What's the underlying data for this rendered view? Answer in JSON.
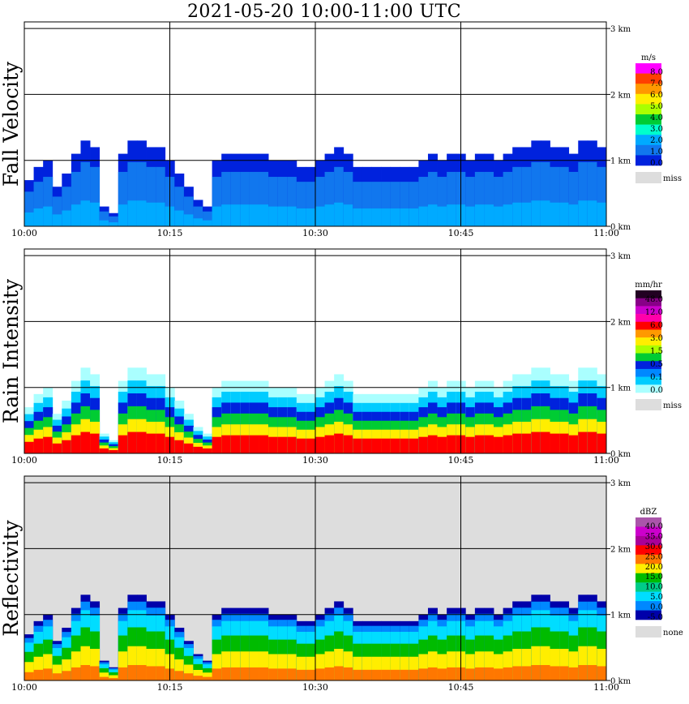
{
  "title": "2021-05-20  10:00-11:00 UTC",
  "colors": {
    "miss": "#dddddd",
    "grid": "#000000"
  },
  "chart_data": [
    {
      "type": "heatmap",
      "ylabel": "Fall Velocity",
      "x_ticks": [
        "10:00",
        "10:15",
        "10:30",
        "10:45",
        "11:00"
      ],
      "y_ticks": [
        "0 km",
        "1 km",
        "2 km",
        "3 km"
      ],
      "ylim_km": [
        0,
        3.1
      ],
      "background": "#ffffff",
      "legend": {
        "unit": "m/s",
        "labels": [
          "8.0",
          "7.0",
          "6.0",
          "5.0",
          "4.0",
          "3.0",
          "2.0",
          "1.0",
          "0.0"
        ],
        "colors": [
          "#ff00ff",
          "#ff4000",
          "#ff9900",
          "#ffee00",
          "#aaff00",
          "#00cc33",
          "#00ffcc",
          "#00aaff",
          "#1177ee",
          "#0022dd"
        ],
        "miss_label": "miss"
      },
      "top_km": [
        0.7,
        0.9,
        1.0,
        0.6,
        0.8,
        1.1,
        1.3,
        1.2,
        0.3,
        0.2,
        1.1,
        1.3,
        1.3,
        1.2,
        1.2,
        1.0,
        0.8,
        0.6,
        0.4,
        0.3,
        1.0,
        1.1,
        1.1,
        1.1,
        1.1,
        1.1,
        1.0,
        1.0,
        1.0,
        0.9,
        0.9,
        1.0,
        1.1,
        1.2,
        1.1,
        0.9,
        0.9,
        0.9,
        0.9,
        0.9,
        0.9,
        0.9,
        1.0,
        1.1,
        1.0,
        1.1,
        1.1,
        1.0,
        1.1,
        1.1,
        1.0,
        1.1,
        1.2,
        1.2,
        1.3,
        1.3,
        1.2,
        1.2,
        1.1,
        1.3,
        1.3,
        1.2
      ],
      "layers": [
        {
          "frac": 1.0,
          "color": "#0022dd"
        },
        {
          "frac": 0.75,
          "color": "#1177ee"
        },
        {
          "frac": 0.3,
          "color": "#00aaff"
        }
      ]
    },
    {
      "type": "heatmap",
      "ylabel": "Rain Intensity",
      "x_ticks": [
        "10:00",
        "10:15",
        "10:30",
        "10:45",
        "11:00"
      ],
      "y_ticks": [
        "0 km",
        "1 km",
        "2 km",
        "3 km"
      ],
      "ylim_km": [
        0,
        3.1
      ],
      "background": "#ffffff",
      "legend": {
        "unit": "mm/hr",
        "labels": [
          "48.0",
          "12.0",
          "6.0",
          "3.0",
          "1.5",
          "0.5",
          "0.1",
          "0.0"
        ],
        "colors": [
          "#220022",
          "#880088",
          "#cc00cc",
          "#ff00aa",
          "#ff0000",
          "#ff9900",
          "#ffee00",
          "#aaff00",
          "#00cc33",
          "#0022dd",
          "#0088ff",
          "#00ccff",
          "#aaffff"
        ],
        "miss_label": "miss"
      },
      "top_km": [
        0.7,
        0.9,
        1.0,
        0.6,
        0.8,
        1.1,
        1.3,
        1.2,
        0.3,
        0.2,
        1.1,
        1.3,
        1.3,
        1.2,
        1.2,
        1.0,
        0.8,
        0.6,
        0.4,
        0.3,
        1.0,
        1.1,
        1.1,
        1.1,
        1.1,
        1.1,
        1.0,
        1.0,
        1.0,
        0.9,
        0.9,
        1.0,
        1.1,
        1.2,
        1.1,
        0.9,
        0.9,
        0.9,
        0.9,
        0.9,
        0.9,
        0.9,
        1.0,
        1.1,
        1.0,
        1.1,
        1.1,
        1.0,
        1.1,
        1.1,
        1.0,
        1.1,
        1.2,
        1.2,
        1.3,
        1.3,
        1.2,
        1.2,
        1.1,
        1.3,
        1.3,
        1.2
      ],
      "layers": [
        {
          "frac": 1.0,
          "color": "#aaffff"
        },
        {
          "frac": 0.85,
          "color": "#00ccff"
        },
        {
          "frac": 0.7,
          "color": "#0022dd"
        },
        {
          "frac": 0.55,
          "color": "#00cc33"
        },
        {
          "frac": 0.4,
          "color": "#ffee00"
        },
        {
          "frac": 0.25,
          "color": "#ff0000"
        }
      ]
    },
    {
      "type": "heatmap",
      "ylabel": "Reflectivity",
      "x_ticks": [
        "10:00",
        "10:15",
        "10:30",
        "10:45",
        "11:00"
      ],
      "y_ticks": [
        "0 km",
        "1 km",
        "2 km",
        "3 km"
      ],
      "ylim_km": [
        0,
        3.1
      ],
      "background": "#dddddd",
      "legend": {
        "unit": "dBZ",
        "labels": [
          "40.0",
          "35.0",
          "30.0",
          "25.0",
          "20.0",
          "15.0",
          "10.0",
          "5.0",
          "0.0",
          "-5.0"
        ],
        "colors": [
          "#aa55aa",
          "#cc00cc",
          "#aa0099",
          "#ff0000",
          "#ff7700",
          "#ffee00",
          "#00bb00",
          "#00cc88",
          "#00ddff",
          "#0088ff",
          "#0000aa"
        ],
        "miss_label": "none"
      },
      "top_km": [
        0.7,
        0.9,
        1.0,
        0.6,
        0.8,
        1.1,
        1.3,
        1.2,
        0.3,
        0.2,
        1.1,
        1.3,
        1.3,
        1.2,
        1.2,
        1.0,
        0.8,
        0.6,
        0.4,
        0.3,
        1.0,
        1.1,
        1.1,
        1.1,
        1.1,
        1.1,
        1.0,
        1.0,
        1.0,
        0.9,
        0.9,
        1.0,
        1.1,
        1.2,
        1.1,
        0.9,
        0.9,
        0.9,
        0.9,
        0.9,
        0.9,
        0.9,
        1.0,
        1.1,
        1.0,
        1.1,
        1.1,
        1.0,
        1.1,
        1.1,
        1.0,
        1.1,
        1.2,
        1.2,
        1.3,
        1.3,
        1.2,
        1.2,
        1.1,
        1.3,
        1.3,
        1.2
      ],
      "layers": [
        {
          "frac": 1.0,
          "color": "#0000aa"
        },
        {
          "frac": 0.92,
          "color": "#0088ff"
        },
        {
          "frac": 0.82,
          "color": "#00ddff"
        },
        {
          "frac": 0.62,
          "color": "#00bb00"
        },
        {
          "frac": 0.4,
          "color": "#ffee00"
        },
        {
          "frac": 0.18,
          "color": "#ff7700"
        }
      ]
    }
  ]
}
